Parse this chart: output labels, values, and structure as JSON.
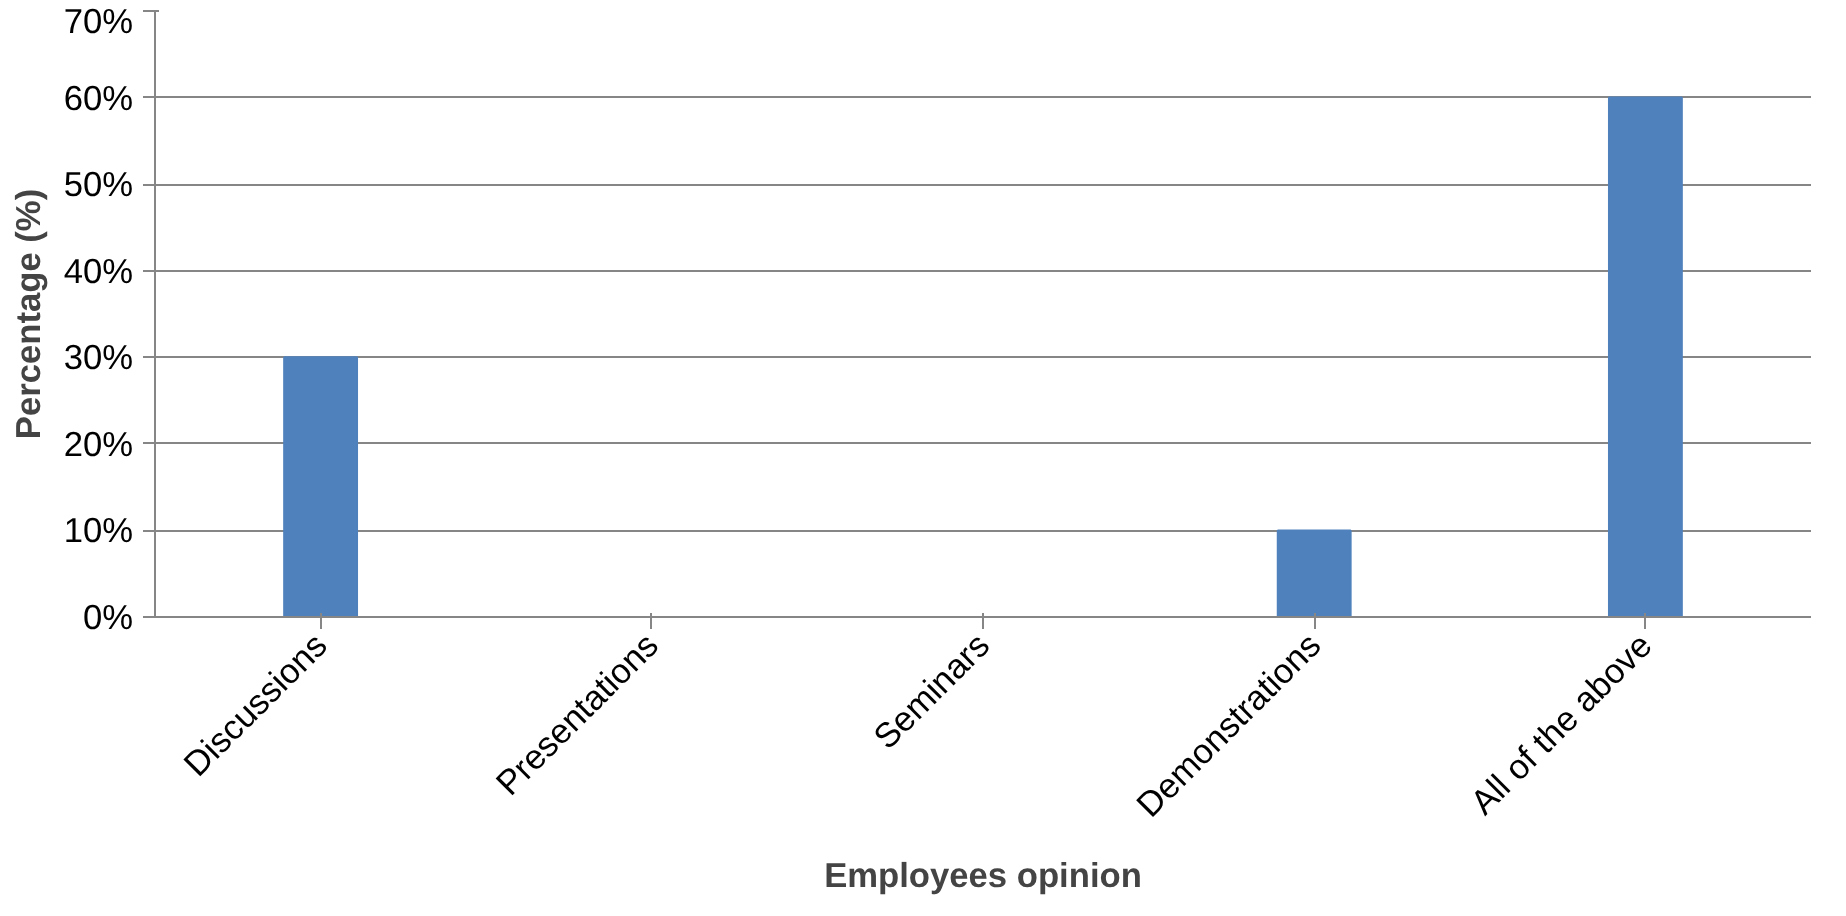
{
  "chart_data": {
    "type": "bar",
    "xlabel": "Employees opinion",
    "ylabel": "Percentage (%)",
    "categories": [
      "Discussions",
      "Presentations",
      "Seminars",
      "Demonstrations",
      "All of the above"
    ],
    "values": [
      30,
      0,
      0,
      10,
      60
    ],
    "color": "#4f81bd",
    "ylim": [
      0,
      70
    ],
    "yticks": [
      {
        "value": 0,
        "label": "0%"
      },
      {
        "value": 10,
        "label": "10%"
      },
      {
        "value": 20,
        "label": "20%"
      },
      {
        "value": 30,
        "label": "30%"
      },
      {
        "value": 40,
        "label": "40%"
      },
      {
        "value": 50,
        "label": "50%"
      },
      {
        "value": 60,
        "label": "60%"
      },
      {
        "value": 70,
        "label": "70%"
      }
    ],
    "grid": "y"
  }
}
